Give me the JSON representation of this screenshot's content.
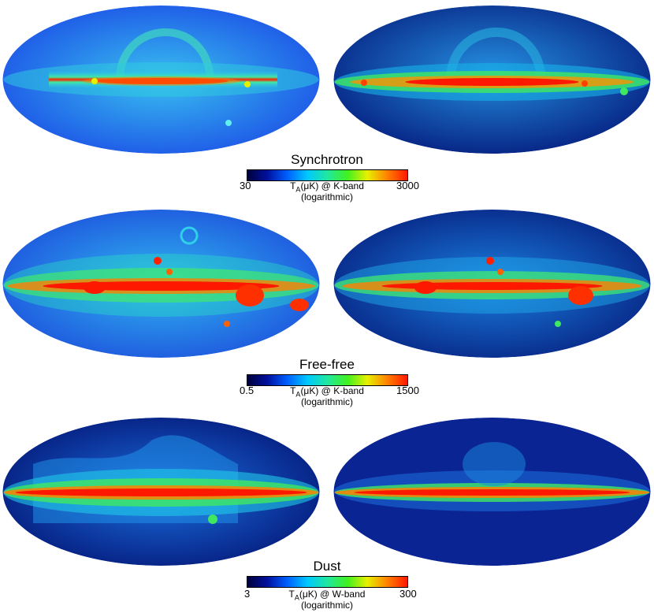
{
  "panels": [
    {
      "title": "Synchrotron",
      "tick_min": "30",
      "tick_max": "3000",
      "unit_line1_pre": "T",
      "unit_line1_sub": "A",
      "unit_line1_post": "(μK) @ K-band",
      "unit_line2": "(logarithmic)",
      "colormap": [
        "#00003a",
        "#0010a0",
        "#0060ff",
        "#00c8ff",
        "#20e8a0",
        "#40f020",
        "#e8f000",
        "#ff8000",
        "#ff1800"
      ]
    },
    {
      "title": "Free-free",
      "tick_min": "0.5",
      "tick_max": "1500",
      "unit_line1_pre": "T",
      "unit_line1_sub": "A",
      "unit_line1_post": "(μK) @ K-band",
      "unit_line2": "(logarithmic)",
      "colormap": [
        "#00003a",
        "#0010a0",
        "#0060ff",
        "#00c8ff",
        "#20e8a0",
        "#40f020",
        "#e8f000",
        "#ff8000",
        "#ff1800"
      ]
    },
    {
      "title": "Dust",
      "tick_min": "3",
      "tick_max": "300",
      "unit_line1_pre": "T",
      "unit_line1_sub": "A",
      "unit_line1_post": "(μK) @ W-band",
      "unit_line2": "(logarithmic)",
      "colormap": [
        "#00003a",
        "#0010a0",
        "#0060ff",
        "#00c8ff",
        "#20e8a0",
        "#40f020",
        "#e8f000",
        "#ff8000",
        "#ff1800"
      ]
    }
  ],
  "map_style": {
    "synchrotron_model": {
      "background": "#2a7cf0",
      "halo": "#30a8f0"
    },
    "synchrotron_data": {
      "background": "#0a2a8a",
      "halo": "#1a70d8"
    },
    "freefree_model": {
      "background": "#2a78f0",
      "halo": "#2ab0f0"
    },
    "freefree_data": {
      "background": "#0a2a8a",
      "halo": "#1a6ad0"
    },
    "dust_model": {
      "background": "#08208a",
      "halo": "#1a80e8"
    },
    "dust_data": {
      "background": "#0a1e88",
      "halo": "#0a2a98"
    }
  }
}
